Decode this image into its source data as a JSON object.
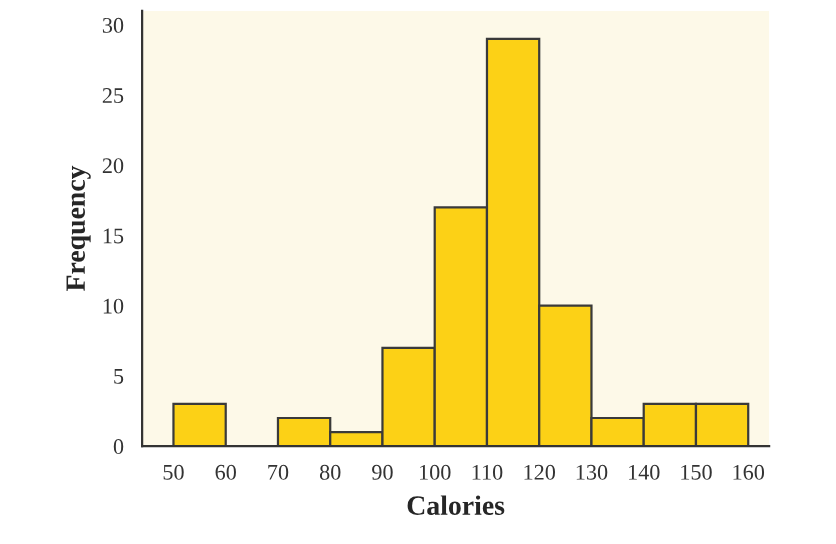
{
  "chart_data": {
    "type": "histogram",
    "xlabel": "Calories",
    "ylabel": "Frequency",
    "bins": [
      50,
      60,
      70,
      80,
      90,
      100,
      110,
      120,
      130,
      140,
      150,
      160
    ],
    "values": [
      3,
      0,
      2,
      1,
      7,
      17,
      29,
      10,
      2,
      3,
      3
    ],
    "color": "#fcd116",
    "xlim": [
      44,
      164
    ],
    "ylim": [
      0,
      31
    ],
    "xticks": [
      50,
      60,
      70,
      80,
      90,
      100,
      110,
      120,
      130,
      140,
      150,
      160
    ],
    "yticks": [
      0,
      5,
      10,
      15,
      20,
      25,
      30
    ],
    "grid": false,
    "legend": false
  }
}
